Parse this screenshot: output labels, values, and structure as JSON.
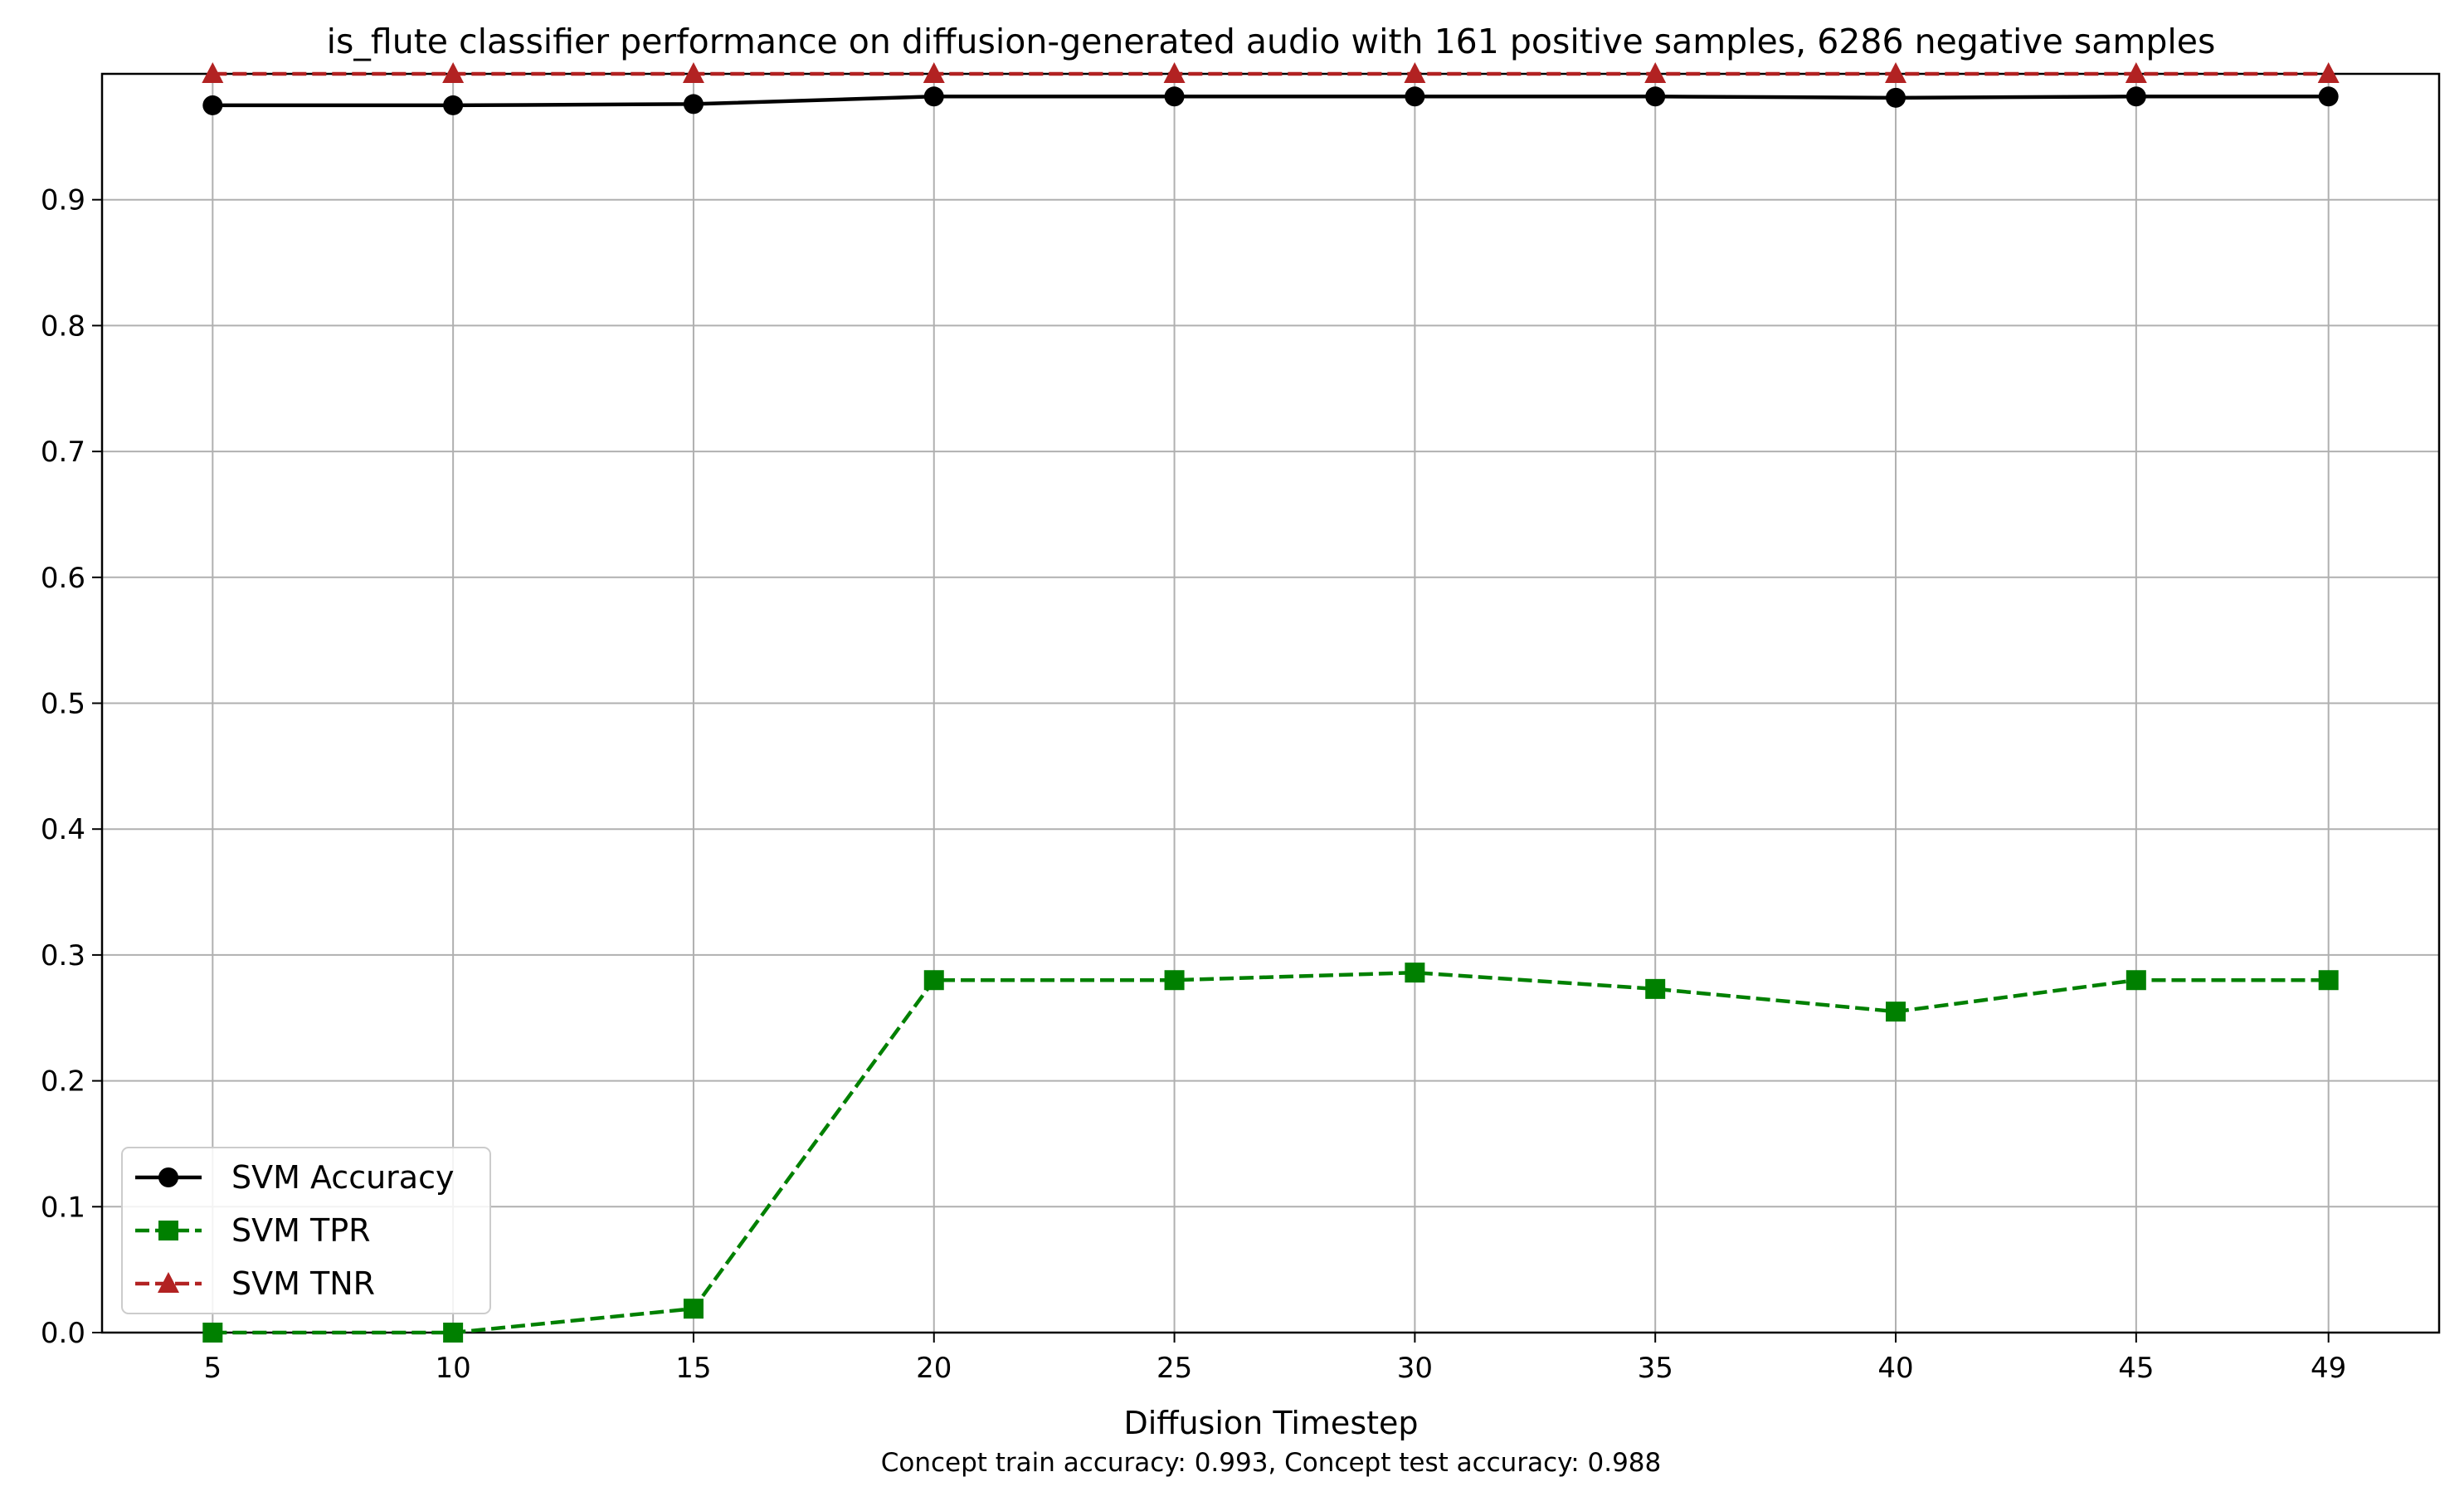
{
  "chart_data": {
    "type": "line",
    "title": "is_flute classifier performance on diffusion-generated audio with 161 positive samples, 6286 negative samples",
    "xlabel": "Diffusion Timestep",
    "ylabel": "",
    "footnote": "Concept train accuracy: 0.993, Concept test accuracy: 0.988",
    "x": [
      5,
      10,
      15,
      20,
      25,
      30,
      35,
      40,
      45,
      49
    ],
    "x_tick_labels": [
      "5",
      "10",
      "15",
      "20",
      "25",
      "30",
      "35",
      "40",
      "45",
      "49"
    ],
    "ylim": [
      0,
      1.0
    ],
    "y_ticks": [
      0.0,
      0.1,
      0.2,
      0.3,
      0.4,
      0.5,
      0.6,
      0.7,
      0.8,
      0.9
    ],
    "y_tick_labels": [
      "0.0",
      "0.1",
      "0.2",
      "0.3",
      "0.4",
      "0.5",
      "0.6",
      "0.7",
      "0.8",
      "0.9"
    ],
    "grid": true,
    "legend_position": "lower-left",
    "series": [
      {
        "name": "SVM Accuracy",
        "color": "#000000",
        "line_style": "solid",
        "marker": "circle",
        "values": [
          0.975,
          0.975,
          0.976,
          0.982,
          0.982,
          0.982,
          0.982,
          0.981,
          0.982,
          0.982
        ]
      },
      {
        "name": "SVM TPR",
        "color": "#008000",
        "line_style": "dashed",
        "marker": "square",
        "values": [
          0.0,
          0.0,
          0.019,
          0.28,
          0.28,
          0.286,
          0.273,
          0.255,
          0.28,
          0.28
        ]
      },
      {
        "name": "SVM TNR",
        "color": "#b22222",
        "line_style": "dashed",
        "marker": "triangle",
        "values": [
          1.0,
          1.0,
          1.0,
          1.0,
          1.0,
          1.0,
          1.0,
          1.0,
          1.0,
          1.0
        ]
      }
    ]
  }
}
